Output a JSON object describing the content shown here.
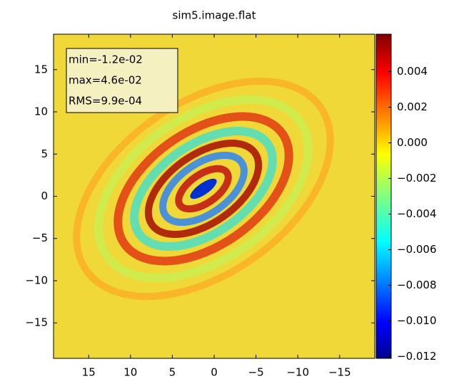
{
  "chart_data": {
    "type": "image",
    "title": "sim5.image.flat",
    "xlim": [
      19.2,
      -19.2
    ],
    "ylim": [
      -19.2,
      19.2
    ],
    "xticks": [
      15,
      10,
      5,
      0,
      {
        "value": -5,
        "label": "−5"
      },
      {
        "value": -10,
        "label": "−10"
      },
      {
        "value": -15,
        "label": "−15"
      }
    ],
    "yticks": [
      15,
      10,
      5,
      0,
      {
        "value": -5,
        "label": "−5"
      },
      {
        "value": -10,
        "label": "−10"
      },
      {
        "value": -15,
        "label": "−15"
      }
    ],
    "clim": [
      -0.0121,
      0.0061
    ],
    "cticks": [
      0.004,
      0.002,
      {
        "value": 0,
        "label": "0.000"
      },
      {
        "value": -0.002,
        "label": "−0.002"
      },
      {
        "value": -0.004,
        "label": "−0.004"
      },
      {
        "value": -0.006,
        "label": "−0.006"
      },
      {
        "value": -0.008,
        "label": "−0.008"
      },
      {
        "value": -0.01,
        "label": "−0.010"
      },
      {
        "value": -0.012,
        "label": "−0.012"
      }
    ],
    "annotations": [
      "min=-1.2e-02",
      "max=4.6e-02",
      "RMS=9.9e-04"
    ]
  }
}
